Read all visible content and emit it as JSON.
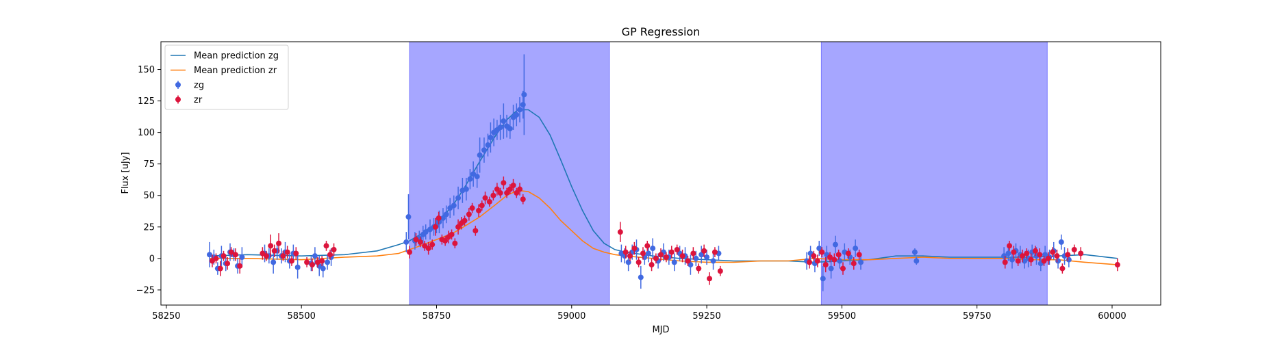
{
  "chart_data": {
    "type": "scatter",
    "title": "GP Regression",
    "xlabel": "MJD",
    "ylabel": "Flux [uJy]",
    "xlim": [
      58240,
      60090
    ],
    "ylim": [
      -37,
      172
    ],
    "xticks": [
      58250,
      58500,
      58750,
      59000,
      59250,
      59500,
      59750,
      60000
    ],
    "yticks": [
      -25,
      0,
      25,
      50,
      75,
      100,
      125,
      150
    ],
    "grid": false,
    "legend_position": "top-left",
    "shaded_regions": [
      {
        "x0": 58700,
        "x1": 59070,
        "color": "#a6a6ff"
      },
      {
        "x0": 59462,
        "x1": 59880,
        "color": "#a6a6ff"
      }
    ],
    "series": [
      {
        "name": "Mean prediction zg",
        "kind": "line",
        "color": "#1f77b4",
        "x": [
          58330,
          58400,
          58500,
          58580,
          58640,
          58680,
          58700,
          58720,
          58750,
          58780,
          58800,
          58830,
          58860,
          58880,
          58900,
          58920,
          58940,
          58960,
          58980,
          59000,
          59020,
          59040,
          59060,
          59080,
          59100,
          59150,
          59200,
          59250,
          59300,
          59350,
          59400,
          59450,
          59500,
          59550,
          59600,
          59650,
          59700,
          59750,
          59800,
          59850,
          59900,
          59950,
          60010
        ],
        "y": [
          2,
          3,
          2,
          3,
          6,
          11,
          14,
          19,
          28,
          42,
          55,
          77,
          98,
          110,
          118,
          118,
          112,
          98,
          78,
          57,
          38,
          22,
          12,
          7,
          5,
          2,
          0,
          -1,
          -2,
          -2,
          -2,
          -3,
          -2,
          -1,
          2,
          2,
          1,
          1,
          1,
          1,
          2,
          3,
          0
        ]
      },
      {
        "name": "Mean prediction zr",
        "kind": "line",
        "color": "#ff7f0e",
        "x": [
          58330,
          58400,
          58500,
          58580,
          58640,
          58680,
          58700,
          58720,
          58750,
          58780,
          58800,
          58830,
          58860,
          58880,
          58900,
          58920,
          58940,
          58960,
          58980,
          59000,
          59020,
          59040,
          59060,
          59080,
          59100,
          59150,
          59200,
          59250,
          59300,
          59350,
          59400,
          59450,
          59500,
          59550,
          59600,
          59650,
          59700,
          59750,
          59800,
          59850,
          59900,
          59950,
          60010
        ],
        "y": [
          0,
          0,
          -1,
          1,
          2,
          4,
          7,
          10,
          15,
          20,
          25,
          33,
          43,
          50,
          54,
          53,
          48,
          40,
          30,
          22,
          14,
          8,
          5,
          3,
          2,
          0,
          -2,
          -3,
          -3,
          -2,
          -2,
          0,
          -1,
          -1,
          0,
          1,
          0,
          0,
          0,
          -1,
          -1,
          -3,
          -5
        ]
      },
      {
        "name": "zg",
        "kind": "errorbar",
        "color": "#4169e1",
        "x": [
          58330,
          58338,
          58345,
          58352,
          58360,
          58368,
          58375,
          58382,
          58390,
          58432,
          58440,
          58448,
          58455,
          58463,
          58470,
          58478,
          58485,
          58493,
          58518,
          58525,
          58533,
          58540,
          58548,
          58555,
          58694,
          58698,
          58710,
          58718,
          58725,
          58730,
          58738,
          58745,
          58750,
          58755,
          58762,
          58768,
          58775,
          58782,
          58790,
          58798,
          58805,
          58812,
          58818,
          58825,
          58830,
          58838,
          58845,
          58850,
          58856,
          58862,
          58868,
          58874,
          58880,
          58886,
          58892,
          58898,
          58904,
          58910,
          58912,
          59092,
          59098,
          59105,
          59112,
          59120,
          59128,
          59135,
          59142,
          59150,
          59160,
          59170,
          59180,
          59190,
          59200,
          59210,
          59220,
          59230,
          59240,
          59250,
          59262,
          59272,
          59435,
          59442,
          59450,
          59458,
          59465,
          59472,
          59480,
          59488,
          59496,
          59505,
          59515,
          59525,
          59535,
          59635,
          59638,
          59800,
          59808,
          59815,
          59822,
          59830,
          59838,
          59845,
          59852,
          59860,
          59868,
          59876,
          59884,
          59892,
          59900,
          59906,
          59912,
          59920
        ],
        "y": [
          3,
          1,
          -8,
          2,
          -4,
          5,
          3,
          -6,
          1,
          4,
          2,
          -3,
          6,
          2,
          5,
          -2,
          4,
          -7,
          -4,
          2,
          -6,
          -8,
          -3,
          1,
          13,
          33,
          14,
          16,
          19,
          21,
          23,
          25,
          26,
          29,
          32,
          35,
          40,
          42,
          48,
          54,
          55,
          63,
          67,
          65,
          82,
          86,
          90,
          96,
          100,
          102,
          104,
          109,
          105,
          103,
          112,
          114,
          118,
          122,
          130,
          4,
          2,
          -3,
          5,
          7,
          -15,
          1,
          4,
          8,
          -2,
          5,
          1,
          -3,
          4,
          2,
          -5,
          0,
          3,
          1,
          -2,
          4,
          -2,
          4,
          -4,
          8,
          -16,
          3,
          -8,
          11,
          -2,
          5,
          1,
          8,
          -3,
          5,
          -2,
          2,
          4,
          -1,
          6,
          3,
          -2,
          0,
          5,
          2,
          -4,
          3,
          1,
          6,
          -2,
          13,
          2,
          -1
        ],
        "yerr": [
          10,
          6,
          5,
          8,
          6,
          7,
          5,
          6,
          8,
          7,
          6,
          9,
          7,
          6,
          8,
          6,
          7,
          9,
          6,
          7,
          8,
          7,
          6,
          7,
          8,
          18,
          7,
          6,
          7,
          6,
          8,
          7,
          6,
          9,
          8,
          7,
          8,
          8,
          9,
          10,
          9,
          8,
          10,
          9,
          14,
          10,
          9,
          12,
          11,
          8,
          10,
          14,
          9,
          8,
          10,
          9,
          10,
          11,
          32,
          7,
          6,
          7,
          6,
          8,
          9,
          6,
          7,
          8,
          6,
          7,
          6,
          7,
          6,
          7,
          8,
          6,
          7,
          6,
          7,
          6,
          7,
          6,
          7,
          6,
          10,
          7,
          8,
          7,
          6,
          7,
          6,
          7,
          6,
          3,
          3,
          7,
          6,
          7,
          6,
          7,
          6,
          7,
          6,
          7,
          6,
          7,
          6,
          7,
          6,
          6,
          7,
          6
        ]
      },
      {
        "name": "zr",
        "kind": "errorbar",
        "color": "#dc143c",
        "x": [
          58335,
          58342,
          58350,
          58356,
          58363,
          58370,
          58378,
          58386,
          58428,
          58435,
          58443,
          58450,
          58458,
          58466,
          58474,
          58482,
          58490,
          58510,
          58520,
          58530,
          58538,
          58546,
          58553,
          58560,
          58700,
          58712,
          58720,
          58728,
          58735,
          58742,
          58748,
          58754,
          58760,
          58766,
          58772,
          58778,
          58784,
          58790,
          58796,
          58802,
          58810,
          58816,
          58822,
          58828,
          58834,
          58840,
          58848,
          58855,
          58862,
          58868,
          58874,
          58880,
          58886,
          58892,
          58898,
          58904,
          58910,
          59090,
          59100,
          59108,
          59116,
          59124,
          59132,
          59140,
          59148,
          59156,
          59165,
          59175,
          59185,
          59195,
          59205,
          59215,
          59225,
          59235,
          59245,
          59255,
          59265,
          59275,
          59440,
          59448,
          59455,
          59463,
          59470,
          59478,
          59486,
          59494,
          59502,
          59512,
          59522,
          59532,
          59802,
          59810,
          59818,
          59826,
          59834,
          59842,
          59850,
          59858,
          59866,
          59874,
          59882,
          59890,
          59898,
          59908,
          59918,
          59930,
          59942,
          60010
        ],
        "y": [
          -2,
          0,
          -8,
          2,
          -4,
          5,
          3,
          -6,
          4,
          2,
          10,
          6,
          12,
          2,
          5,
          -2,
          4,
          -3,
          -5,
          -3,
          -2,
          10,
          3,
          7,
          5,
          15,
          13,
          10,
          8,
          11,
          25,
          32,
          15,
          14,
          17,
          19,
          12,
          25,
          28,
          30,
          35,
          40,
          22,
          38,
          42,
          48,
          45,
          50,
          55,
          52,
          60,
          52,
          55,
          58,
          52,
          55,
          47,
          21,
          5,
          2,
          8,
          -3,
          4,
          10,
          -5,
          0,
          3,
          1,
          5,
          7,
          2,
          -2,
          4,
          -8,
          6,
          -16,
          5,
          -10,
          -3,
          2,
          -2,
          5,
          -5,
          1,
          -1,
          3,
          -8,
          4,
          -4,
          3,
          -3,
          10,
          5,
          -2,
          2,
          4,
          -1,
          6,
          3,
          -2,
          0,
          5,
          2,
          -8,
          3,
          7,
          4,
          -5
        ],
        "yerr": [
          5,
          4,
          6,
          4,
          5,
          4,
          5,
          6,
          5,
          4,
          9,
          5,
          8,
          4,
          5,
          4,
          5,
          4,
          5,
          4,
          4,
          4,
          4,
          5,
          5,
          5,
          4,
          4,
          5,
          4,
          7,
          5,
          4,
          4,
          5,
          4,
          4,
          6,
          5,
          4,
          5,
          4,
          4,
          5,
          4,
          5,
          4,
          4,
          5,
          4,
          5,
          4,
          4,
          5,
          4,
          5,
          4,
          8,
          5,
          4,
          5,
          4,
          5,
          4,
          5,
          4,
          5,
          4,
          5,
          4,
          5,
          4,
          5,
          4,
          5,
          5,
          4,
          4,
          5,
          4,
          5,
          4,
          6,
          4,
          5,
          4,
          5,
          4,
          5,
          4,
          5,
          4,
          5,
          4,
          5,
          4,
          5,
          4,
          5,
          4,
          5,
          4,
          5,
          4,
          5,
          4,
          5,
          5
        ]
      }
    ]
  }
}
